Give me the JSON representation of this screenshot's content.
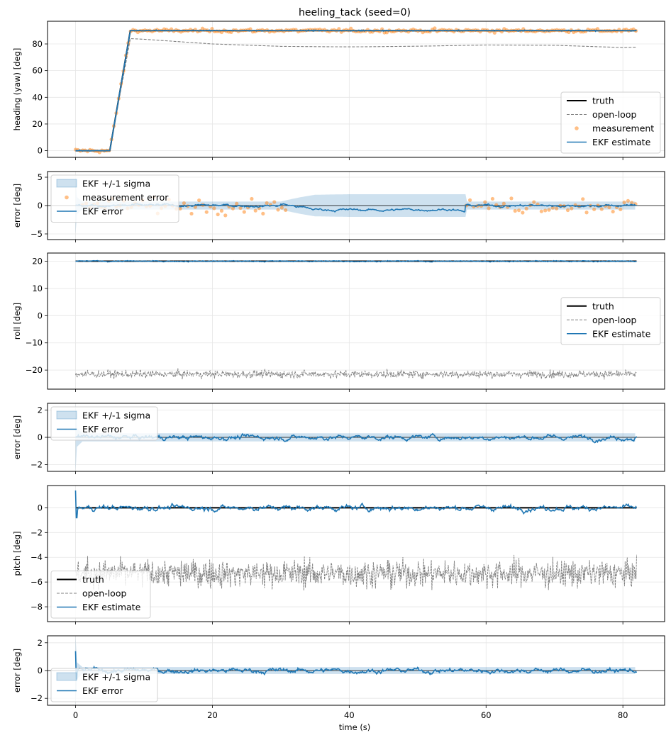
{
  "chart_data": {
    "title": "heeling_tack (seed=0)",
    "xlabel": "time (s)",
    "xlim": [
      -4.1,
      86.1
    ],
    "xticks": [
      0,
      20,
      40,
      60,
      80
    ],
    "x_end": 82,
    "colors": {
      "truth": "#000000",
      "open_loop": "#808080",
      "measurement": "#ff7f0e",
      "ekf": "#1f77b4",
      "grid": "#e6e6e6",
      "legend_border": "#d0d0d0"
    },
    "panels": [
      {
        "id": "heading",
        "type": "line",
        "ylabel": "heading (yaw) [deg]",
        "ylim": [
          -5,
          97
        ],
        "yticks": [
          0,
          20,
          40,
          60,
          80
        ],
        "grid": true,
        "legend": {
          "position": "lower-right",
          "entries": [
            "truth",
            "open-loop",
            "measurement",
            "EKF estimate"
          ]
        },
        "truth": {
          "x": [
            0,
            5,
            8,
            82
          ],
          "y": [
            0,
            0,
            90,
            90
          ]
        },
        "open_loop": {
          "x": [
            0,
            5,
            8,
            10,
            20,
            30,
            40,
            50,
            60,
            70,
            80,
            82
          ],
          "y": [
            0,
            0,
            84,
            83.5,
            80,
            78.2,
            77.8,
            78.3,
            79.2,
            79,
            77.3,
            77.6
          ]
        },
        "measurement": {
          "x_range": [
            0,
            82
          ],
          "step": 0.35,
          "noise": 0.9,
          "follows": "truth"
        },
        "ekf": {
          "follows": "truth",
          "noise": 0.5
        }
      },
      {
        "id": "heading-error",
        "type": "line",
        "ylabel": "error [deg]",
        "ylim": [
          -6,
          6
        ],
        "yticks": [
          -5,
          0,
          5
        ],
        "grid": true,
        "legend": {
          "position": "upper-left",
          "entries": [
            "EKF +/-1 sigma",
            "measurement error",
            "EKF error"
          ]
        },
        "sigma": {
          "x": [
            0,
            0.2,
            1,
            15,
            30,
            31,
            33,
            35,
            40,
            50,
            56,
            57,
            57.1,
            82
          ],
          "y": [
            5,
            1.5,
            0.7,
            0.7,
            0.7,
            1,
            1.5,
            1.9,
            2,
            2,
            2,
            2,
            0.7,
            0.7
          ]
        },
        "measurement_error": {
          "x_range": [
            1,
            82
          ],
          "gap": [
            31,
            57
          ],
          "step": 0.55,
          "sd": 0.9
        },
        "ekf_error": {
          "sd": 0.35,
          "drift": {
            "x": [
              30,
              33,
              35,
              45,
              55,
              57
            ],
            "y": [
              0.3,
              -0.3,
              -0.7,
              -0.8,
              -0.6,
              -1.2
            ]
          }
        }
      },
      {
        "id": "roll",
        "type": "line",
        "ylabel": "roll [deg]",
        "ylim": [
          -27,
          23
        ],
        "yticks": [
          -20,
          -10,
          0,
          10,
          20
        ],
        "grid": true,
        "legend": {
          "position": "center-right",
          "entries": [
            "truth",
            "open-loop",
            "EKF estimate"
          ]
        },
        "truth": {
          "value": 20
        },
        "open_loop": {
          "center": -21.5,
          "spread": 1.6
        },
        "ekf": {
          "center": 20,
          "spread": 0.25
        }
      },
      {
        "id": "roll-error",
        "type": "line",
        "ylabel": "error [deg]",
        "ylim": [
          -2.5,
          2.5
        ],
        "yticks": [
          -2,
          0,
          2
        ],
        "grid": true,
        "legend": {
          "position": "upper-left",
          "entries": [
            "EKF +/-1 sigma",
            "EKF error"
          ]
        },
        "sigma": {
          "x": [
            0,
            0.2,
            1,
            82
          ],
          "y": [
            2.5,
            0.7,
            0.3,
            0.3
          ]
        },
        "ekf_error": {
          "sd": 0.22
        }
      },
      {
        "id": "pitch",
        "type": "line",
        "ylabel": "pitch [deg]",
        "ylim": [
          -9.2,
          1.8
        ],
        "yticks": [
          -8,
          -6,
          -4,
          -2,
          0
        ],
        "grid": true,
        "legend": {
          "position": "lower-left",
          "entries": [
            "truth",
            "open-loop",
            "EKF estimate"
          ]
        },
        "truth": {
          "value": 0
        },
        "open_loop": {
          "center": -5.3,
          "spread": 1.3
        },
        "ekf": {
          "center": 0,
          "spread": 0.25,
          "start_spike": 1.4
        }
      },
      {
        "id": "pitch-error",
        "type": "line",
        "ylabel": "error [deg]",
        "ylim": [
          -2.5,
          2.5
        ],
        "yticks": [
          -2,
          0,
          2
        ],
        "grid": true,
        "legend": {
          "position": "lower-left",
          "entries": [
            "EKF +/-1 sigma",
            "EKF error"
          ]
        },
        "sigma": {
          "x": [
            0,
            0.2,
            1,
            82
          ],
          "y": [
            2.5,
            0.6,
            0.25,
            0.25
          ]
        },
        "ekf_error": {
          "sd": 0.22,
          "start_spike": 1.4
        }
      }
    ]
  }
}
